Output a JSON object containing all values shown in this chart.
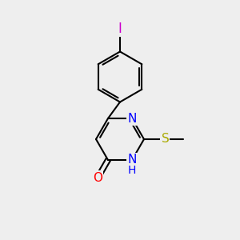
{
  "bg_color": "#eeeeee",
  "line_color": "#000000",
  "bond_width": 1.5,
  "font_size": 10,
  "atom_colors": {
    "N": "#0000ff",
    "O": "#ff0000",
    "S": "#aaaa00",
    "I": "#cc00cc",
    "C": "#000000"
  }
}
